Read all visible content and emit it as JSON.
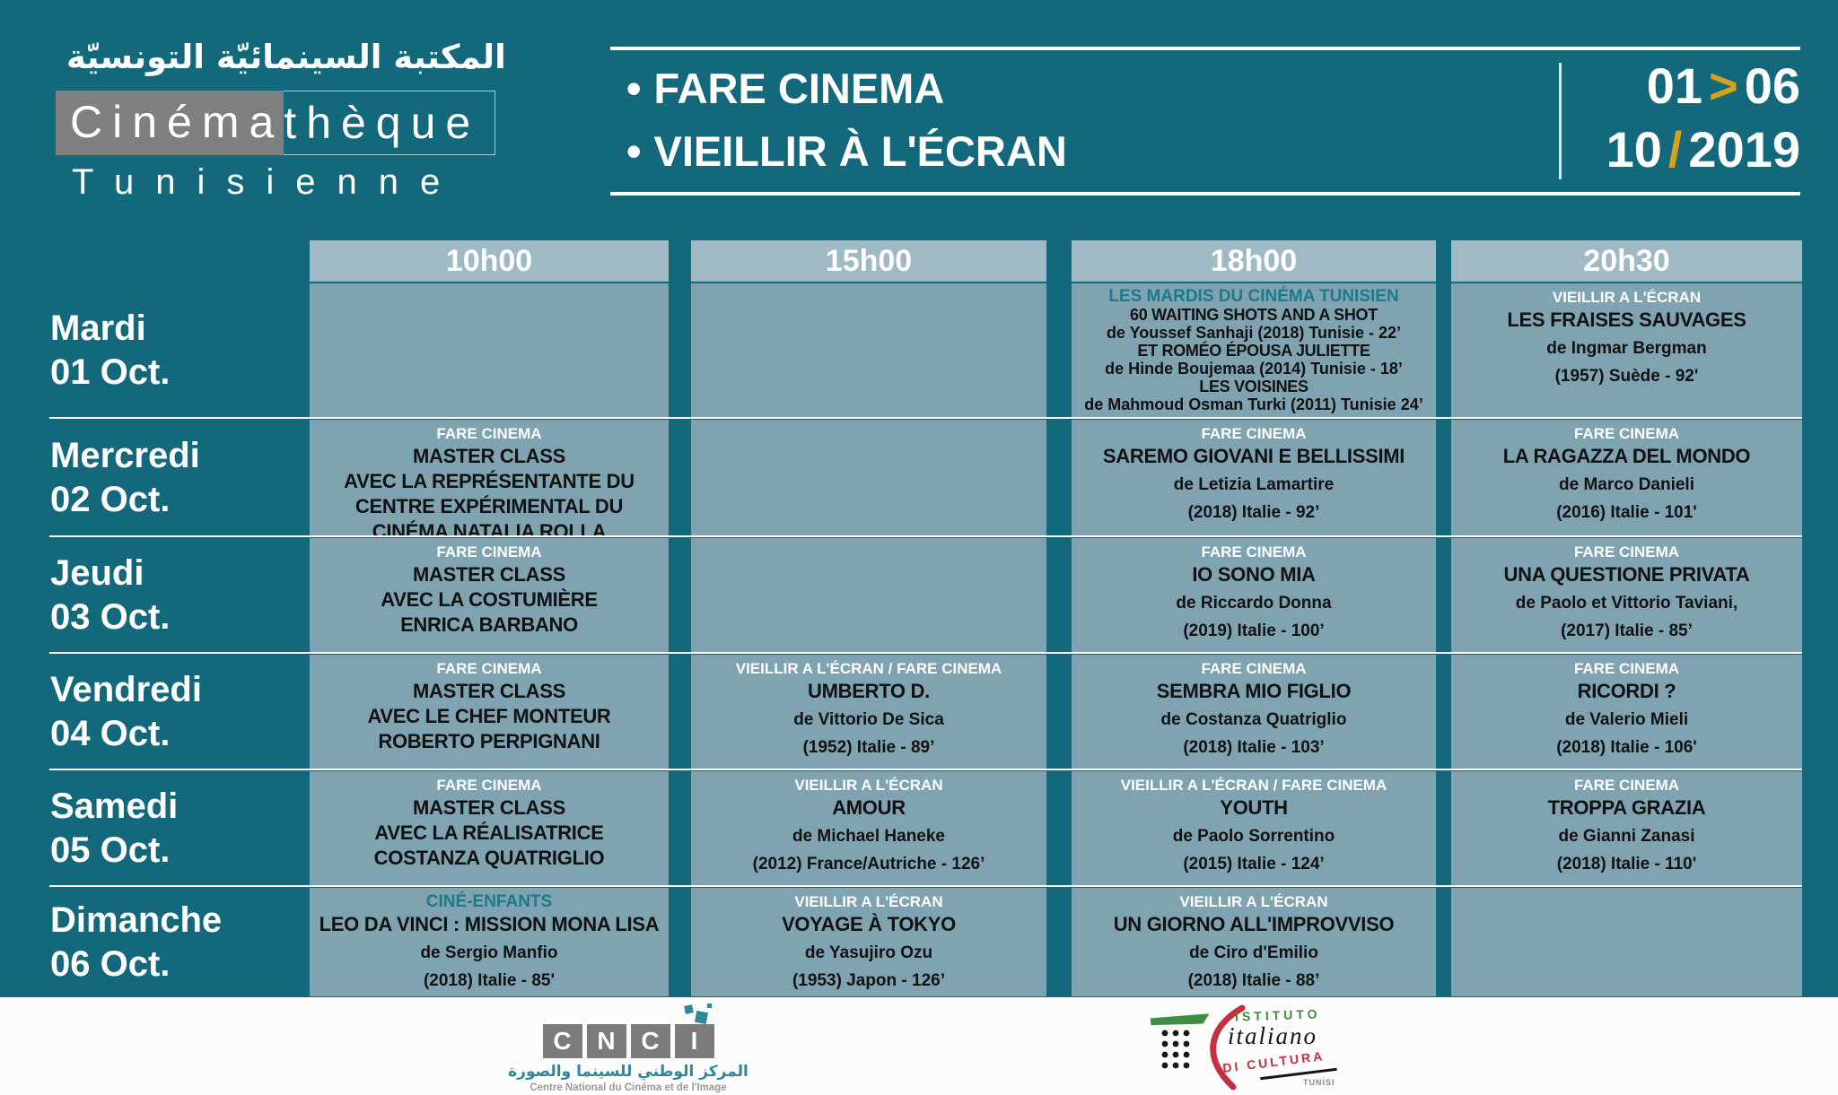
{
  "brand": {
    "arabic_title": "المكتبة السينمائيّة التونسيّة",
    "name_highlight": "Cinéma",
    "name_rest": "thèque",
    "name_line2": "Tunisienne"
  },
  "header": {
    "bullet": "•",
    "program1": "FARE CINEMA",
    "program2": "VIEILLIR À L'ÉCRAN",
    "date": {
      "day_from": "01",
      "arrow": ">",
      "day_to": "06",
      "month": "10",
      "slash": "/",
      "year": "2019"
    }
  },
  "schedule": {
    "times": [
      "10h00",
      "15h00",
      "18h00",
      "20h30"
    ],
    "days": [
      {
        "name": "Mardi",
        "date": "01 Oct.",
        "cells": [
          {
            "empty": true
          },
          {
            "empty": true
          },
          {
            "category": "LES MARDIS DU CINÉMA TUNISIEN",
            "accent": true,
            "compact": true,
            "lines": [
              {
                "style": "title",
                "text": "60 WAITING SHOTS AND A SHOT"
              },
              {
                "style": "credit",
                "text": "de Youssef Sanhaji (2018) Tunisie - 22’"
              },
              {
                "style": "title",
                "text": "ET ROMÉO ÉPOUSA JULIETTE"
              },
              {
                "style": "credit",
                "text": "de Hinde Boujemaa (2014) Tunisie - 18’"
              },
              {
                "style": "title",
                "text": "LES VOISINES"
              },
              {
                "style": "credit",
                "text": "de Mahmoud Osman Turki (2011) Tunisie 24’"
              }
            ]
          },
          {
            "category": "VIEILLIR A L'ÉCRAN",
            "lines": [
              {
                "style": "title",
                "text": "LES FRAISES SAUVAGES"
              },
              {
                "style": "credit",
                "text": "de Ingmar Bergman"
              },
              {
                "style": "credit",
                "text": "(1957) Suède - 92'"
              }
            ]
          }
        ]
      },
      {
        "name": "Mercredi",
        "date": "02 Oct.",
        "cells": [
          {
            "category": "FARE CINEMA",
            "lines": [
              {
                "style": "title",
                "text": "MASTER CLASS"
              },
              {
                "style": "title",
                "text": "AVEC LA REPRÉSENTANTE DU"
              },
              {
                "style": "title",
                "text": "CENTRE EXPÉRIMENTAL DU"
              },
              {
                "style": "title",
                "text": "CINÉMA NATALIA ROLLA"
              }
            ]
          },
          {
            "empty": true
          },
          {
            "category": "FARE CINEMA",
            "lines": [
              {
                "style": "title",
                "text": "SAREMO GIOVANI E BELLISSIMI"
              },
              {
                "style": "credit",
                "text": "de Letizia Lamartire"
              },
              {
                "style": "credit",
                "text": "(2018) Italie - 92’"
              }
            ]
          },
          {
            "category": "FARE CINEMA",
            "lines": [
              {
                "style": "title",
                "text": "LA RAGAZZA DEL MONDO"
              },
              {
                "style": "credit",
                "text": "de Marco Danieli"
              },
              {
                "style": "credit",
                "text": "(2016) Italie - 101'"
              }
            ]
          }
        ]
      },
      {
        "name": "Jeudi",
        "date": "03 Oct.",
        "cells": [
          {
            "category": "FARE CINEMA",
            "lines": [
              {
                "style": "title",
                "text": "MASTER CLASS"
              },
              {
                "style": "title",
                "text": "AVEC LA COSTUMIÈRE"
              },
              {
                "style": "title",
                "text": "ENRICA BARBANO"
              }
            ]
          },
          {
            "empty": true
          },
          {
            "category": "FARE CINEMA",
            "lines": [
              {
                "style": "title",
                "text": "IO SONO MIA"
              },
              {
                "style": "credit",
                "text": "de Riccardo Donna"
              },
              {
                "style": "credit",
                "text": "(2019) Italie - 100’"
              }
            ]
          },
          {
            "category": "FARE CINEMA",
            "lines": [
              {
                "style": "title",
                "text": "UNA QUESTIONE PRIVATA"
              },
              {
                "style": "credit",
                "text": "de Paolo et Vittorio Taviani,"
              },
              {
                "style": "credit",
                "text": "(2017) Italie - 85’"
              }
            ]
          }
        ]
      },
      {
        "name": "Vendredi",
        "date": "04 Oct.",
        "cells": [
          {
            "category": "FARE CINEMA",
            "lines": [
              {
                "style": "title",
                "text": "MASTER CLASS"
              },
              {
                "style": "title",
                "text": "AVEC LE CHEF MONTEUR"
              },
              {
                "style": "title",
                "text": "ROBERTO PERPIGNANI"
              }
            ]
          },
          {
            "category": "VIEILLIR A L'ÉCRAN / FARE CINEMA",
            "lines": [
              {
                "style": "title",
                "text": "UMBERTO D."
              },
              {
                "style": "credit",
                "text": "de Vittorio De Sica"
              },
              {
                "style": "credit",
                "text": "(1952) Italie - 89’"
              }
            ]
          },
          {
            "category": "FARE CINEMA",
            "lines": [
              {
                "style": "title",
                "text": "SEMBRA MIO FIGLIO"
              },
              {
                "style": "credit",
                "text": "de Costanza Quatriglio"
              },
              {
                "style": "credit",
                "text": "(2018) Italie - 103’"
              }
            ]
          },
          {
            "category": "FARE CINEMA",
            "lines": [
              {
                "style": "title",
                "text": "RICORDI ?"
              },
              {
                "style": "credit",
                "text": "de Valerio Mieli"
              },
              {
                "style": "credit",
                "text": "(2018) Italie - 106'"
              }
            ]
          }
        ]
      },
      {
        "name": "Samedi",
        "date": "05 Oct.",
        "cells": [
          {
            "category": "FARE CINEMA",
            "lines": [
              {
                "style": "title",
                "text": "MASTER CLASS"
              },
              {
                "style": "title",
                "text": "AVEC LA RÉALISATRICE"
              },
              {
                "style": "title",
                "text": "COSTANZA QUATRIGLIO"
              }
            ]
          },
          {
            "category": "VIEILLIR A L'ÉCRAN",
            "lines": [
              {
                "style": "title",
                "text": "AMOUR"
              },
              {
                "style": "credit",
                "text": "de Michael Haneke"
              },
              {
                "style": "credit",
                "text": "(2012) France/Autriche - 126’"
              }
            ]
          },
          {
            "category": "VIEILLIR A L'ÉCRAN / FARE CINEMA",
            "lines": [
              {
                "style": "title",
                "text": "YOUTH"
              },
              {
                "style": "credit",
                "text": "de Paolo Sorrentino"
              },
              {
                "style": "credit",
                "text": "(2015) Italie - 124’"
              }
            ]
          },
          {
            "category": "FARE CINEMA",
            "lines": [
              {
                "style": "title",
                "text": "TROPPA GRAZIA"
              },
              {
                "style": "credit",
                "text": "de Gianni Zanasi"
              },
              {
                "style": "credit",
                "text": "(2018) Italie - 110'"
              }
            ]
          }
        ]
      },
      {
        "name": "Dimanche",
        "date": "06 Oct.",
        "cells": [
          {
            "category": "CINÉ-ENFANTS",
            "accent": true,
            "lines": [
              {
                "style": "title",
                "text": "LEO DA VINCI : MISSION MONA LISA"
              },
              {
                "style": "credit",
                "text": "de Sergio Manfio"
              },
              {
                "style": "credit",
                "text": "(2018) Italie - 85'"
              }
            ]
          },
          {
            "category": "VIEILLIR A L'ÉCRAN",
            "lines": [
              {
                "style": "title",
                "text": "VOYAGE À TOKYO"
              },
              {
                "style": "credit",
                "text": "de Yasujiro Ozu"
              },
              {
                "style": "credit",
                "text": "(1953) Japon - 126’"
              }
            ]
          },
          {
            "category": "VIEILLIR A L'ÉCRAN",
            "lines": [
              {
                "style": "title",
                "text": "UN GIORNO ALL'IMPROVVISO"
              },
              {
                "style": "credit",
                "text": "de Ciro d'Emilio"
              },
              {
                "style": "credit",
                "text": "(2018) Italie - 88’"
              }
            ]
          },
          {
            "empty": true
          }
        ]
      }
    ]
  },
  "footer": {
    "cnci": {
      "letters": [
        "C",
        "N",
        "C",
        "I"
      ],
      "arabic": "المركز الوطني للسينما والصورة",
      "french": "Centre National du Cinéma et de l'Image"
    },
    "iic": {
      "line1": "ISTITUTO",
      "line2": "italiano",
      "line3": "DI CULTURA",
      "line4": "TUNISI"
    }
  },
  "colors": {
    "background": "#13697B",
    "cell": "#7FA3B0",
    "cell_header": "#9FBAC4",
    "accent_teal": "#1B7A8C",
    "cnci_teal": "#2E8799",
    "gold": "#D5A21B",
    "brand_gray": "#7F7F7F",
    "text_dark": "#121212"
  }
}
